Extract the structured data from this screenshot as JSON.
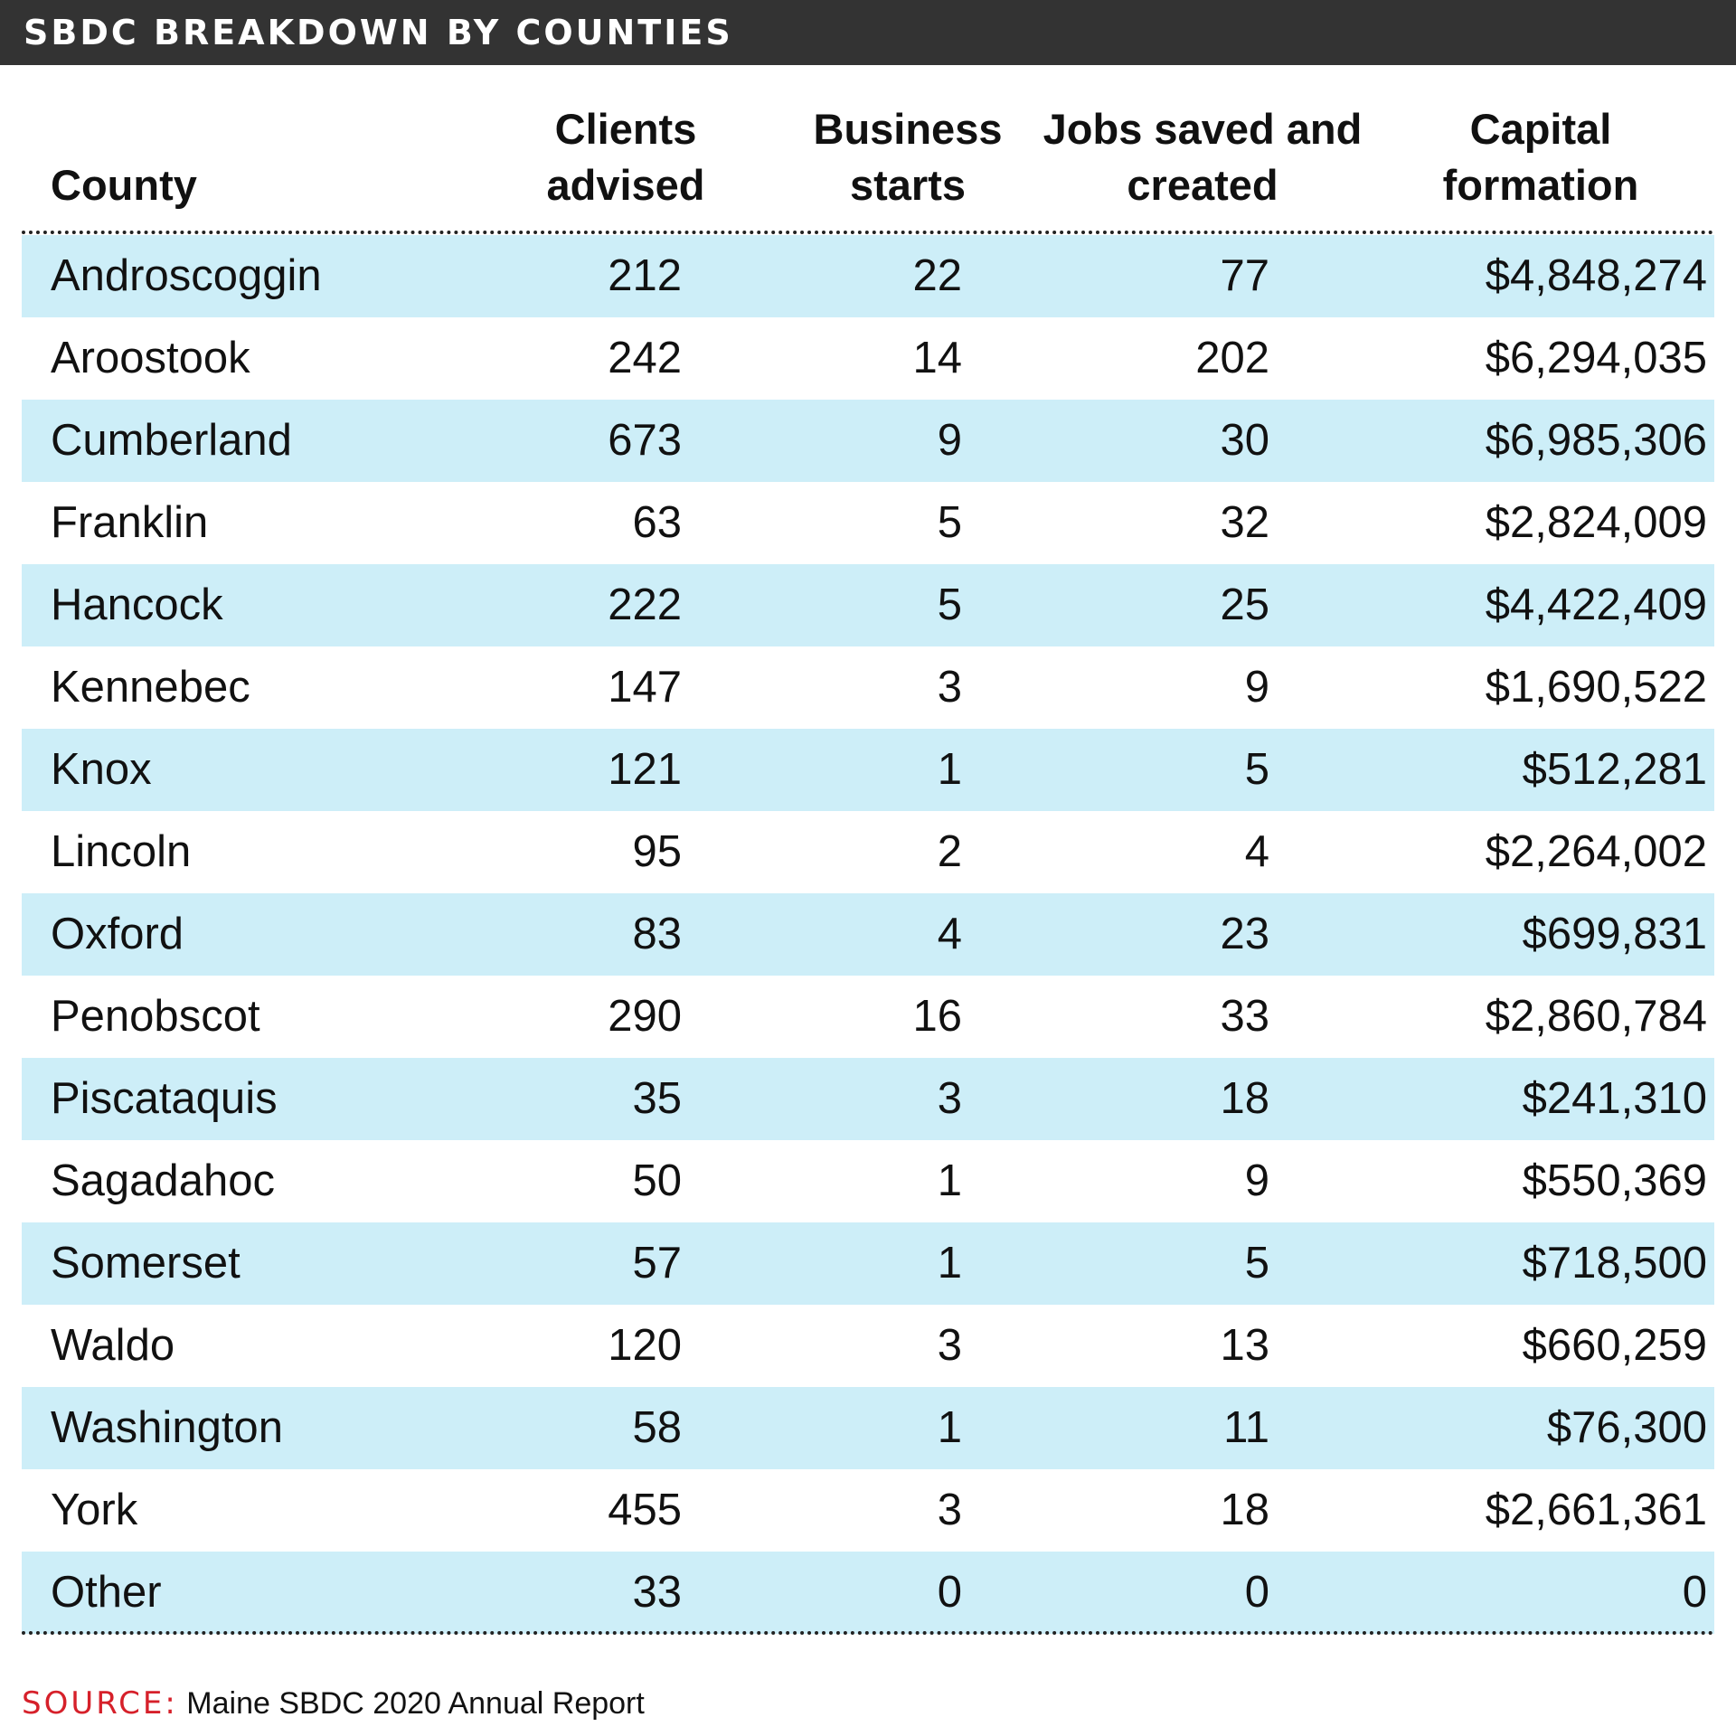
{
  "title": "SBDC BREAKDOWN BY COUNTIES",
  "colors": {
    "title_bar": "#333333",
    "row_highlight": "#cdeef8",
    "source_label": "#d6202a"
  },
  "chart_data": {
    "type": "table",
    "columns": [
      {
        "key": "county",
        "line1": "",
        "line2": "County"
      },
      {
        "key": "clients",
        "line1": "Clients",
        "line2": "advised"
      },
      {
        "key": "business",
        "line1": "Business",
        "line2": "starts"
      },
      {
        "key": "jobs",
        "line1": "Jobs saved and",
        "line2": "created"
      },
      {
        "key": "capital",
        "line1": "Capital",
        "line2": "formation"
      }
    ],
    "rows": [
      {
        "county": "Androscoggin",
        "clients": "212",
        "business": "22",
        "jobs": "77",
        "capital": "$4,848,274"
      },
      {
        "county": "Aroostook",
        "clients": "242",
        "business": "14",
        "jobs": "202",
        "capital": "$6,294,035"
      },
      {
        "county": "Cumberland",
        "clients": "673",
        "business": "9",
        "jobs": "30",
        "capital": "$6,985,306"
      },
      {
        "county": "Franklin",
        "clients": "63",
        "business": "5",
        "jobs": "32",
        "capital": "$2,824,009"
      },
      {
        "county": "Hancock",
        "clients": "222",
        "business": "5",
        "jobs": "25",
        "capital": "$4,422,409"
      },
      {
        "county": "Kennebec",
        "clients": "147",
        "business": "3",
        "jobs": "9",
        "capital": "$1,690,522"
      },
      {
        "county": "Knox",
        "clients": "121",
        "business": "1",
        "jobs": "5",
        "capital": "$512,281"
      },
      {
        "county": "Lincoln",
        "clients": "95",
        "business": "2",
        "jobs": "4",
        "capital": "$2,264,002"
      },
      {
        "county": "Oxford",
        "clients": "83",
        "business": "4",
        "jobs": "23",
        "capital": "$699,831"
      },
      {
        "county": "Penobscot",
        "clients": "290",
        "business": "16",
        "jobs": "33",
        "capital": "$2,860,784"
      },
      {
        "county": "Piscataquis",
        "clients": "35",
        "business": "3",
        "jobs": "18",
        "capital": "$241,310"
      },
      {
        "county": "Sagadahoc",
        "clients": "50",
        "business": "1",
        "jobs": "9",
        "capital": "$550,369"
      },
      {
        "county": "Somerset",
        "clients": "57",
        "business": "1",
        "jobs": "5",
        "capital": "$718,500"
      },
      {
        "county": "Waldo",
        "clients": "120",
        "business": "3",
        "jobs": "13",
        "capital": "$660,259"
      },
      {
        "county": "Washington",
        "clients": "58",
        "business": "1",
        "jobs": "11",
        "capital": "$76,300"
      },
      {
        "county": "York",
        "clients": "455",
        "business": "3",
        "jobs": "18",
        "capital": "$2,661,361"
      },
      {
        "county": "Other",
        "clients": "33",
        "business": "0",
        "jobs": "0",
        "capital": "0"
      }
    ]
  },
  "source": {
    "label": "SOURCE:",
    "text": "Maine SBDC 2020 Annual Report"
  }
}
